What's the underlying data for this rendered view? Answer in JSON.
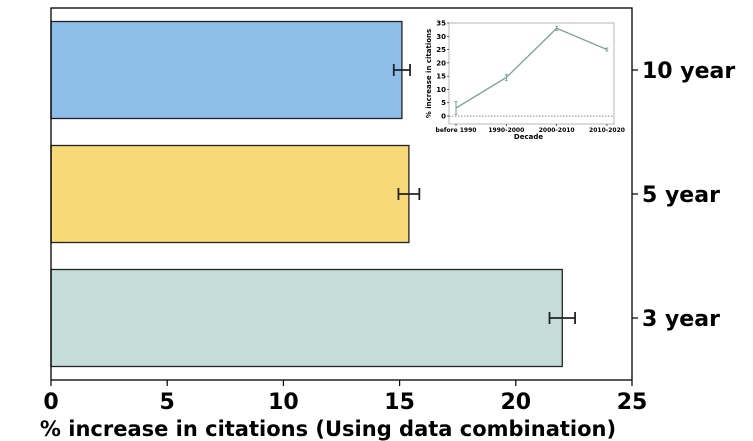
{
  "chart_data": [
    {
      "type": "bar",
      "orientation": "horizontal",
      "categories": [
        "10 year",
        "5 year",
        "3 year"
      ],
      "values": [
        15.1,
        15.4,
        22.0
      ],
      "errors": [
        0.35,
        0.45,
        0.55
      ],
      "colors": [
        "#8dbde8",
        "#f8d97a",
        "#c5ddd9"
      ],
      "xlabel": "% increase in citations (Using data combination)",
      "xlim": [
        0,
        25
      ],
      "xticks": [
        0,
        5,
        10,
        15,
        20,
        25
      ],
      "category_axis_side": "right",
      "grid": false
    },
    {
      "type": "line",
      "placement": "inset top-right",
      "categories": [
        "before 1990",
        "1990-2000",
        "2000-2010",
        "2010-2020"
      ],
      "values": [
        3,
        14.5,
        33,
        25
      ],
      "errors": [
        2.5,
        1.2,
        0.8,
        0.6
      ],
      "color": "#7a9e98",
      "xlabel": "Decade",
      "ylabel": "% increase in citations",
      "ylim": [
        -3,
        35
      ],
      "yticks": [
        0,
        5,
        10,
        15,
        20,
        25,
        30,
        35
      ],
      "reference_line": 0,
      "grid": false
    }
  ]
}
